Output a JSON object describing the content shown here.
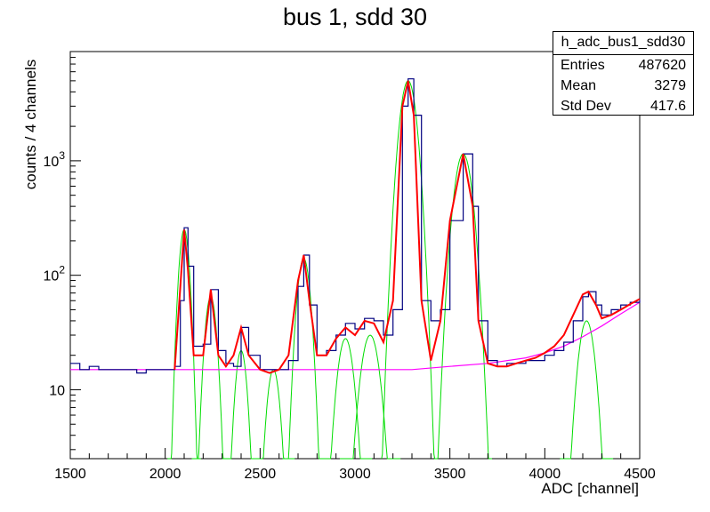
{
  "chart_data": {
    "type": "histogram",
    "title": "bus 1, sdd 30",
    "xlabel": "ADC [channel]",
    "ylabel": "counts / 4 channels",
    "xlim": [
      1500,
      4500
    ],
    "ylim": [
      2.5,
      9000
    ],
    "yscale": "log",
    "x_ticks": [
      1500,
      2000,
      2500,
      3000,
      3500,
      4000,
      4500
    ],
    "y_tick_labels": [
      {
        "base": "10",
        "exp": ""
      },
      {
        "base": "10",
        "exp": "2"
      },
      {
        "base": "10",
        "exp": "3"
      }
    ],
    "y_tick_values": [
      10,
      100,
      1000
    ],
    "stats": {
      "name": "h_adc_bus1_sdd30",
      "rows": [
        {
          "label": "Entries",
          "value": "487620"
        },
        {
          "label": "Mean",
          "value": "3279"
        },
        {
          "label": "Std Dev",
          "value": "417.6"
        }
      ]
    },
    "histogram": {
      "name": "h_adc_bus1_sdd30",
      "color": "#000080",
      "points": [
        [
          1500,
          17
        ],
        [
          1550,
          15
        ],
        [
          1600,
          16
        ],
        [
          1650,
          15
        ],
        [
          1700,
          15
        ],
        [
          1750,
          15
        ],
        [
          1800,
          15
        ],
        [
          1850,
          14
        ],
        [
          1900,
          15
        ],
        [
          1950,
          15
        ],
        [
          2000,
          15
        ],
        [
          2050,
          16
        ],
        [
          2080,
          60
        ],
        [
          2100,
          260
        ],
        [
          2120,
          120
        ],
        [
          2150,
          24
        ],
        [
          2200,
          25
        ],
        [
          2240,
          75
        ],
        [
          2280,
          22
        ],
        [
          2320,
          17
        ],
        [
          2360,
          16
        ],
        [
          2400,
          35
        ],
        [
          2440,
          20
        ],
        [
          2500,
          15
        ],
        [
          2550,
          15
        ],
        [
          2600,
          15
        ],
        [
          2650,
          18
        ],
        [
          2700,
          80
        ],
        [
          2730,
          150
        ],
        [
          2760,
          55
        ],
        [
          2800,
          20
        ],
        [
          2850,
          22
        ],
        [
          2900,
          30
        ],
        [
          2950,
          38
        ],
        [
          3000,
          34
        ],
        [
          3050,
          42
        ],
        [
          3100,
          40
        ],
        [
          3150,
          30
        ],
        [
          3200,
          50
        ],
        [
          3250,
          3000
        ],
        [
          3280,
          5200
        ],
        [
          3310,
          2500
        ],
        [
          3350,
          60
        ],
        [
          3400,
          40
        ],
        [
          3450,
          50
        ],
        [
          3500,
          300
        ],
        [
          3570,
          1150
        ],
        [
          3620,
          400
        ],
        [
          3650,
          40
        ],
        [
          3700,
          18
        ],
        [
          3750,
          16
        ],
        [
          3800,
          17
        ],
        [
          3850,
          17
        ],
        [
          3900,
          18
        ],
        [
          3950,
          18
        ],
        [
          4000,
          20
        ],
        [
          4050,
          22
        ],
        [
          4100,
          26
        ],
        [
          4150,
          40
        ],
        [
          4200,
          65
        ],
        [
          4230,
          72
        ],
        [
          4270,
          55
        ],
        [
          4300,
          45
        ],
        [
          4350,
          50
        ],
        [
          4400,
          55
        ],
        [
          4450,
          58
        ],
        [
          4500,
          62
        ]
      ]
    },
    "total_fit": {
      "color": "#ff0000",
      "points": [
        [
          2050,
          15
        ],
        [
          2080,
          80
        ],
        [
          2100,
          250
        ],
        [
          2120,
          110
        ],
        [
          2150,
          20
        ],
        [
          2200,
          20
        ],
        [
          2240,
          75
        ],
        [
          2280,
          20
        ],
        [
          2320,
          16
        ],
        [
          2360,
          20
        ],
        [
          2400,
          35
        ],
        [
          2440,
          20
        ],
        [
          2500,
          15
        ],
        [
          2550,
          14
        ],
        [
          2600,
          15
        ],
        [
          2650,
          20
        ],
        [
          2700,
          90
        ],
        [
          2730,
          150
        ],
        [
          2760,
          60
        ],
        [
          2800,
          20
        ],
        [
          2850,
          20
        ],
        [
          2900,
          28
        ],
        [
          2950,
          35
        ],
        [
          3000,
          30
        ],
        [
          3050,
          40
        ],
        [
          3100,
          38
        ],
        [
          3150,
          26
        ],
        [
          3200,
          60
        ],
        [
          3250,
          3000
        ],
        [
          3280,
          5000
        ],
        [
          3310,
          2500
        ],
        [
          3350,
          60
        ],
        [
          3400,
          18
        ],
        [
          3450,
          40
        ],
        [
          3500,
          300
        ],
        [
          3570,
          1150
        ],
        [
          3620,
          400
        ],
        [
          3650,
          40
        ],
        [
          3700,
          17
        ],
        [
          3750,
          16
        ],
        [
          3800,
          16
        ],
        [
          3850,
          17
        ],
        [
          3900,
          18
        ],
        [
          3950,
          19
        ],
        [
          4000,
          21
        ],
        [
          4050,
          24
        ],
        [
          4100,
          30
        ],
        [
          4150,
          45
        ],
        [
          4200,
          68
        ],
        [
          4230,
          72
        ],
        [
          4270,
          55
        ],
        [
          4300,
          42
        ],
        [
          4350,
          45
        ],
        [
          4400,
          50
        ],
        [
          4450,
          56
        ],
        [
          4500,
          62
        ]
      ]
    },
    "background_fit": {
      "color": "#ff00ff",
      "points": [
        [
          1500,
          15
        ],
        [
          1700,
          15
        ],
        [
          1900,
          15
        ],
        [
          2100,
          15
        ],
        [
          2300,
          15
        ],
        [
          2500,
          15
        ],
        [
          2700,
          15
        ],
        [
          2900,
          15
        ],
        [
          3100,
          15
        ],
        [
          3300,
          15
        ],
        [
          3500,
          16
        ],
        [
          3700,
          17
        ],
        [
          3900,
          19
        ],
        [
          4000,
          21
        ],
        [
          4100,
          24
        ],
        [
          4200,
          29
        ],
        [
          4300,
          36
        ],
        [
          4400,
          46
        ],
        [
          4500,
          58
        ]
      ]
    },
    "peaks": {
      "color": "#00dd00",
      "items": [
        {
          "center": 2100,
          "amplitude": 250,
          "sigma": 22
        },
        {
          "center": 2240,
          "amplitude": 65,
          "sigma": 25
        },
        {
          "center": 2400,
          "amplitude": 22,
          "sigma": 25
        },
        {
          "center": 2570,
          "amplitude": 15,
          "sigma": 28
        },
        {
          "center": 2730,
          "amplitude": 140,
          "sigma": 28
        },
        {
          "center": 2950,
          "amplitude": 28,
          "sigma": 35
        },
        {
          "center": 3080,
          "amplitude": 30,
          "sigma": 40
        },
        {
          "center": 3280,
          "amplitude": 5000,
          "sigma": 35
        },
        {
          "center": 3570,
          "amplitude": 1150,
          "sigma": 38
        },
        {
          "center": 4220,
          "amplitude": 40,
          "sigma": 35
        }
      ]
    }
  }
}
